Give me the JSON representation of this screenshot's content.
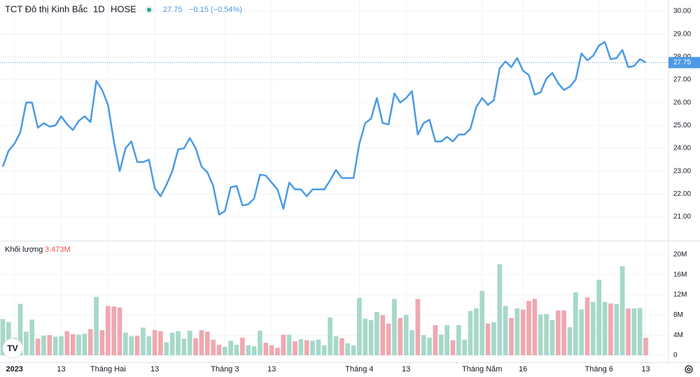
{
  "chart_data": {
    "type": "line",
    "title": "TCT Đô thị Kinh Bắc",
    "interval": "1D",
    "exchange": "HOSE",
    "change": "−0.15 (−0.54%)",
    "volume_title": "Khối lượng",
    "last_volume": "3.473M",
    "xlim": [
      -0.479,
      113.89
    ],
    "xticks": [
      {
        "value": 2,
        "label": "2023"
      },
      {
        "value": 10,
        "label": "13"
      },
      {
        "value": 18,
        "label": "Tháng Hai"
      },
      {
        "value": 26,
        "label": "13"
      },
      {
        "value": 38,
        "label": "Tháng 3"
      },
      {
        "value": 46,
        "label": "13"
      },
      {
        "value": 61,
        "label": "Tháng 4"
      },
      {
        "value": 69,
        "label": "13"
      },
      {
        "value": 82,
        "label": "Tháng Năm"
      },
      {
        "value": 89,
        "label": "16"
      },
      {
        "value": 102,
        "label": "Tháng 6"
      },
      {
        "value": 110,
        "label": "13"
      }
    ],
    "ylim": [
      19.99,
      30.49
    ],
    "yticks": [
      {
        "value": 21,
        "label": "21.00"
      },
      {
        "value": 22,
        "label": "22.00"
      },
      {
        "value": 23,
        "label": "23.00"
      },
      {
        "value": 24,
        "label": "24.00"
      },
      {
        "value": 25,
        "label": "25.00"
      },
      {
        "value": 26,
        "label": "26.00"
      },
      {
        "value": 27,
        "label": "27.00"
      },
      {
        "value": 28,
        "label": "28.00"
      },
      {
        "value": 29,
        "label": "29.00"
      },
      {
        "value": 30,
        "label": "30.00"
      }
    ],
    "y2lim": [
      -1390000,
      22500000
    ],
    "y2ticks": [
      0,
      {
        "value": 4000000,
        "label": "4M"
      },
      {
        "value": 8000000,
        "label": "8M"
      },
      {
        "value": 12000000,
        "label": "12M"
      },
      {
        "value": 16000000,
        "label": "16M"
      },
      {
        "value": 20000000,
        "label": "20M"
      }
    ],
    "grid": true,
    "series": [
      {
        "name": "TCT Đô thị Kinh Bắc",
        "color": "#4a9ae6",
        "values": [
          23.2,
          23.9,
          24.2,
          24.7,
          26.0,
          26.0,
          24.9,
          25.1,
          24.95,
          25.0,
          25.4,
          25.05,
          24.8,
          25.2,
          25.4,
          25.15,
          26.95,
          26.55,
          25.9,
          24.3,
          23.0,
          24.0,
          24.3,
          23.4,
          23.4,
          23.5,
          22.25,
          21.9,
          22.4,
          23.0,
          23.95,
          24.0,
          24.45,
          24.0,
          23.2,
          22.95,
          22.35,
          21.1,
          21.25,
          22.3,
          22.35,
          21.5,
          21.55,
          21.8,
          22.85,
          22.8,
          22.5,
          22.2,
          21.35,
          22.5,
          22.2,
          22.2,
          21.9,
          22.2,
          22.2,
          22.2,
          22.6,
          23.05,
          22.7,
          22.7,
          22.7,
          24.2,
          25.1,
          25.3,
          26.2,
          25.1,
          25.05,
          26.4,
          26.0,
          26.2,
          26.5,
          24.6,
          25.1,
          25.25,
          24.3,
          24.3,
          24.5,
          24.3,
          24.6,
          24.6,
          24.85,
          25.8,
          26.2,
          25.9,
          26.1,
          27.5,
          27.8,
          27.55,
          27.95,
          27.4,
          27.2,
          26.35,
          26.45,
          27.05,
          27.3,
          26.85,
          26.55,
          26.7,
          27.0,
          28.15,
          27.85,
          28.05,
          28.5,
          28.65,
          27.9,
          27.95,
          28.3,
          27.55,
          27.6,
          27.9,
          27.75
        ]
      },
      {
        "name": "Khối lượng",
        "type": "bar",
        "axis": "y2",
        "color": "#a6d8c9",
        "down_color": "#efa8b0",
        "values": [
          7200000,
          6600000,
          3500000,
          10200000,
          4700000,
          7100000,
          3300000,
          3900000,
          4000000,
          3700000,
          3800000,
          4800000,
          4200000,
          4100000,
          4300000,
          5200000,
          11600000,
          5000000,
          9800000,
          9700000,
          9500000,
          4500000,
          3800000,
          3900000,
          5500000,
          3800000,
          5000000,
          4800000,
          2600000,
          4500000,
          4800000,
          3300000,
          4900000,
          3400000,
          5000000,
          4700000,
          3100000,
          2100000,
          1700000,
          2900000,
          2100000,
          3500000,
          2000000,
          1800000,
          4900000,
          2500000,
          2000000,
          1500000,
          4100000,
          4100000,
          2800000,
          3200000,
          3000000,
          2900000,
          3100000,
          2000000,
          7500000,
          3800000,
          3400000,
          2400000,
          2000000,
          11400000,
          7300000,
          7000000,
          8600000,
          8000000,
          6300000,
          11200000,
          7400000,
          8000000,
          5000000,
          11200000,
          4000000,
          3500000,
          6000000,
          4100000,
          6000000,
          3000000,
          6000000,
          3100000,
          8800000,
          9300000,
          12800000,
          6300000,
          6600000,
          18100000,
          9800000,
          7400000,
          9300000,
          9100000,
          10800000,
          11200000,
          8100000,
          8200000,
          7000000,
          8900000,
          8900000,
          5600000,
          12500000,
          9100000,
          11500000,
          10600000,
          15000000,
          10600000,
          10300000,
          10200000,
          17700000,
          9300000,
          9300000,
          9400000,
          3473000
        ]
      }
    ]
  }
}
